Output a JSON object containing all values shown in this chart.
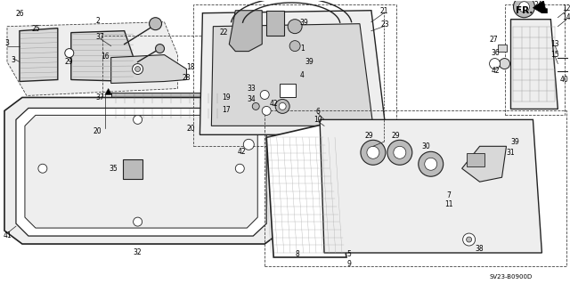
{
  "background_color": "#ffffff",
  "diagram_code": "SV23-B0900D",
  "line_color": "#222222",
  "gray_fill": "#d8d8d8",
  "light_gray": "#eeeeee",
  "mid_gray": "#bbbbbb"
}
